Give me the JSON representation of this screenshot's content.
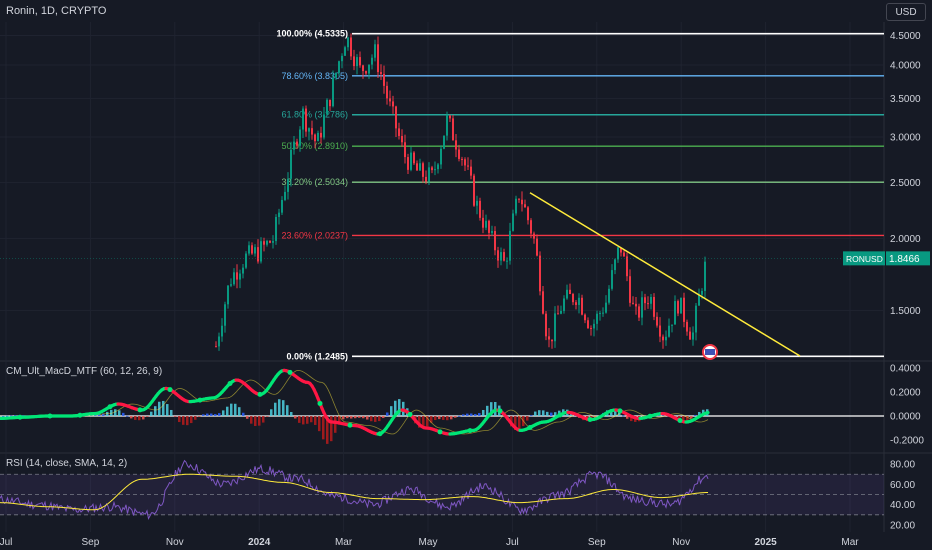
{
  "header": {
    "title": "Ronin, 1D, CRYPTO",
    "currency_button": "USD"
  },
  "colors": {
    "background": "#161a25",
    "grid": "#1f2330",
    "up": "#089981",
    "down": "#f23645",
    "trendline": "#ffeb3b",
    "fib_100": "#ffffff",
    "fib_786": "#64b5f6",
    "fib_618": "#26a69a",
    "fib_50": "#4caf50",
    "fib_382": "#81c784",
    "fib_236": "#f23645",
    "fib_0": "#ffffff",
    "macd_line_up": "#00e676",
    "macd_line_down": "#ff1744",
    "macd_hist_up": "#2962ff",
    "macd_hist_up_light": "#4dd0e1",
    "rsi_line": "#7e57c2",
    "rsi_ma": "#ffeb3b",
    "rsi_band": "#7e57c2"
  },
  "chart_data": [
    {
      "type": "candlestick",
      "title": "Ronin, 1D, CRYPTO",
      "symbol": "RONUSD",
      "last_price_label": "1.8466",
      "last_price": 1.8466,
      "scale": "log",
      "ylim": [
        1.23,
        4.75
      ],
      "y_ticks": [
        "4.5000",
        "4.0000",
        "3.5000",
        "3.0000",
        "2.5000",
        "2.0000",
        "1.5000"
      ],
      "y_tick_values": [
        4.5,
        4.0,
        3.5,
        3.0,
        2.5,
        2.0,
        1.5
      ],
      "x_ticks": [
        "Jul",
        "Sep",
        "Nov",
        "2024",
        "Mar",
        "May",
        "Jul",
        "Sep",
        "Nov",
        "2025",
        "Mar"
      ],
      "fib_levels": [
        {
          "label": "100.00% (4.5335)",
          "value": 4.5335,
          "color_key": "fib_100"
        },
        {
          "label": "78.60% (3.8305)",
          "value": 3.8305,
          "color_key": "fib_786"
        },
        {
          "label": "61.80% (3.2786)",
          "value": 3.2786,
          "color_key": "fib_618"
        },
        {
          "label": "50.00% (2.8910)",
          "value": 2.891,
          "color_key": "fib_50"
        },
        {
          "label": "38.20% (2.5034)",
          "value": 2.5034,
          "color_key": "fib_382"
        },
        {
          "label": "23.60% (2.0237)",
          "value": 2.0237,
          "color_key": "fib_236"
        },
        {
          "label": "0.00% (1.2485)",
          "value": 1.2485,
          "color_key": "fib_0"
        }
      ],
      "trendline": {
        "from": {
          "date": "Jul 2024",
          "price": 2.4
        },
        "to": {
          "date": "Jan 2025",
          "price": 1.25
        }
      },
      "price_path": [
        [
          "Dec 2023",
          1.3
        ],
        [
          "Dec 2023",
          1.7
        ],
        [
          "Jan 2024",
          1.85
        ],
        [
          "Jan 2024",
          1.9
        ],
        [
          "Jan 2024",
          2.0
        ],
        [
          "Feb 2024",
          2.6
        ],
        [
          "Feb 2024",
          3.3
        ],
        [
          "Feb 2024",
          2.9
        ],
        [
          "Feb 2024",
          3.6
        ],
        [
          "Mar 2024",
          4.5
        ],
        [
          "Mar 2024",
          3.9
        ],
        [
          "Mar 2024",
          4.2
        ],
        [
          "Apr 2024",
          3.4
        ],
        [
          "Apr 2024",
          2.8
        ],
        [
          "Apr 2024",
          2.6
        ],
        [
          "May 2024",
          2.55
        ],
        [
          "May 2024",
          3.2
        ],
        [
          "Jun 2024",
          2.8
        ],
        [
          "Jun 2024",
          2.3
        ],
        [
          "Jun 2024",
          2.0
        ],
        [
          "Jul 2024",
          1.8
        ],
        [
          "Jul 2024",
          2.4
        ],
        [
          "Aug 2024",
          2.0
        ],
        [
          "Aug 2024",
          1.3
        ],
        [
          "Aug 2024",
          1.55
        ],
        [
          "Sep 2024",
          1.6
        ],
        [
          "Sep 2024",
          1.4
        ],
        [
          "Sep 2024",
          1.55
        ],
        [
          "Oct 2024",
          1.95
        ],
        [
          "Oct 2024",
          1.45
        ],
        [
          "Oct 2024",
          1.6
        ],
        [
          "Nov 2024",
          1.35
        ],
        [
          "Nov 2024",
          1.55
        ],
        [
          "Nov 2024",
          1.35
        ],
        [
          "Nov 2024",
          1.85
        ]
      ]
    },
    {
      "type": "line",
      "title": "CM_Ult_MacD_MTF (60, 12, 26, 9)",
      "y_ticks": [
        "0.4000",
        "0.2000",
        "0.0000",
        "-0.2000"
      ],
      "y_tick_values": [
        0.4,
        0.2,
        0.0,
        -0.2
      ],
      "ylim": [
        -0.3,
        0.45
      ],
      "series": [
        {
          "values": [
            [
              "Jul 2023",
              -0.02
            ],
            [
              "Aug 2023",
              -0.01
            ],
            [
              "Sep 2023",
              0.0
            ],
            [
              "Oct 2023",
              0.0
            ],
            [
              "Nov 2023",
              0.02
            ],
            [
              "Dec 2023",
              0.1
            ],
            [
              "Dec 2023",
              0.05
            ],
            [
              "Jan 2024",
              0.23
            ],
            [
              "Jan 2024",
              0.12
            ],
            [
              "Feb 2024",
              0.15
            ],
            [
              "Feb 2024",
              0.3
            ],
            [
              "Feb 2024",
              0.18
            ],
            [
              "Mar 2024",
              0.38
            ],
            [
              "Mar 2024",
              0.28
            ],
            [
              "Apr 2024",
              -0.05
            ],
            [
              "Apr 2024",
              -0.08
            ],
            [
              "May 2024",
              -0.15
            ],
            [
              "May 2024",
              0.05
            ],
            [
              "Jun 2024",
              -0.1
            ],
            [
              "Jun 2024",
              -0.15
            ],
            [
              "Jul 2024",
              -0.12
            ],
            [
              "Jul 2024",
              0.05
            ],
            [
              "Aug 2024",
              -0.12
            ],
            [
              "Aug 2024",
              -0.05
            ],
            [
              "Sep 2024",
              0.03
            ],
            [
              "Sep 2024",
              -0.03
            ],
            [
              "Oct 2024",
              0.05
            ],
            [
              "Oct 2024",
              -0.02
            ],
            [
              "Nov 2024",
              0.02
            ],
            [
              "Nov 2024",
              -0.05
            ],
            [
              "Nov 2024",
              0.03
            ]
          ]
        }
      ]
    },
    {
      "type": "line",
      "title": "RSI (14, close, SMA, 14, 2)",
      "y_ticks": [
        "80.00",
        "60.00",
        "40.00",
        "20.00"
      ],
      "y_tick_values": [
        80,
        60,
        40,
        20
      ],
      "ylim": [
        15,
        90
      ],
      "bands": [
        70,
        50,
        30
      ],
      "series": [
        {
          "values": [
            [
              "Jul 2023",
              45
            ],
            [
              "Aug 2023",
              40
            ],
            [
              "Sep 2023",
              35
            ],
            [
              "Oct 2023",
              38
            ],
            [
              "Nov 2023",
              30
            ],
            [
              "Dec 2023",
              80
            ],
            [
              "Jan 2024",
              60
            ],
            [
              "Feb 2024",
              75
            ],
            [
              "Mar 2024",
              65
            ],
            [
              "Apr 2024",
              48
            ],
            [
              "May 2024",
              40
            ],
            [
              "May 2024",
              55
            ],
            [
              "Jun 2024",
              38
            ],
            [
              "Jul 2024",
              58
            ],
            [
              "Aug 2024",
              35
            ],
            [
              "Sep 2024",
              50
            ],
            [
              "Oct 2024",
              70
            ],
            [
              "Oct 2024",
              45
            ],
            [
              "Nov 2024",
              40
            ],
            [
              "Nov 2024",
              68
            ]
          ]
        },
        {
          "values": [
            [
              "Jul 2023",
              42
            ],
            [
              "Sep 2023",
              38
            ],
            [
              "Nov 2023",
              35
            ],
            [
              "Dec 2023",
              65
            ],
            [
              "Jan 2024",
              70
            ],
            [
              "Feb 2024",
              68
            ],
            [
              "Mar 2024",
              62
            ],
            [
              "Apr 2024",
              52
            ],
            [
              "May 2024",
              46
            ],
            [
              "Jun 2024",
              45
            ],
            [
              "Jul 2024",
              48
            ],
            [
              "Aug 2024",
              42
            ],
            [
              "Sep 2024",
              46
            ],
            [
              "Oct 2024",
              55
            ],
            [
              "Nov 2024",
              47
            ],
            [
              "Nov 2024",
              52
            ]
          ]
        }
      ]
    }
  ]
}
